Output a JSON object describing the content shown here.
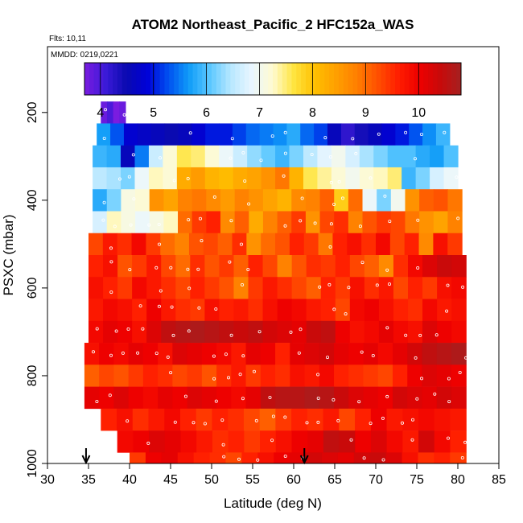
{
  "chart_data": {
    "type": "heatmap",
    "title": "ATOM2 Northeast_Pacific_2 HFC152a_WAS",
    "flights_note": "Flts: 10,11",
    "dates_note": "MMDD: 0219,0221",
    "xlabel": "Latitude (deg N)",
    "ylabel": "PSXC (mbar)",
    "xlim": [
      30,
      85
    ],
    "ylim": [
      1000,
      50
    ],
    "x_ticks": [
      "30",
      "35",
      "40",
      "45",
      "50",
      "55",
      "60",
      "65",
      "70",
      "75",
      "80",
      "85"
    ],
    "y_ticks": [
      "200",
      "400",
      "600",
      "800",
      "1000"
    ],
    "colorbar": {
      "min": 3.7,
      "max": 10.8,
      "ticks": [
        "4",
        "5",
        "6",
        "7",
        "8",
        "9",
        "10"
      ],
      "colors": [
        "#7a1ce0",
        "#3c1ad8",
        "#0a0ab0",
        "#0000d8",
        "#0050f0",
        "#109cf8",
        "#5cc8ff",
        "#b8e8ff",
        "#eaf6ff",
        "#fffbd0",
        "#ffe440",
        "#ffc000",
        "#ffa000",
        "#ff8000",
        "#ff5000",
        "#ff1e00",
        "#ee0000",
        "#c80a0a",
        "#a52020"
      ]
    },
    "row_height_mbar": 50,
    "rows": [
      {
        "p": 200,
        "lat_start": 36.5,
        "lat_end": 39.5,
        "values": [
          3.8,
          4.0,
          3.7,
          3.8
        ]
      },
      {
        "p": 250,
        "lat_start": 36,
        "lat_end": 79,
        "values": [
          5.7,
          5.3,
          4.8,
          4.7,
          4.6,
          4.5,
          4.6,
          4.8,
          5.0,
          5.0,
          5.2,
          5.4,
          5.5,
          5.6,
          5.8,
          5.4,
          5.2,
          4.6,
          4.2,
          4.4,
          4.6,
          4.8,
          5.0,
          5.3,
          5.6,
          5.9
        ]
      },
      {
        "p": 300,
        "lat_start": 35.5,
        "lat_end": 80,
        "values": [
          5.9,
          5.8,
          4.6,
          5.5,
          6.6,
          7.2,
          7.6,
          7.5,
          7.2,
          6.9,
          6.6,
          6.3,
          6.1,
          5.9,
          6.2,
          6.5,
          6.8,
          7.0,
          6.7,
          6.4,
          6.2,
          6.0,
          6.0,
          5.8,
          5.7,
          6.0
        ]
      },
      {
        "p": 350,
        "lat_start": 35.5,
        "lat_end": 80,
        "values": [
          6.5,
          6.4,
          6.2,
          6.9,
          7.3,
          7.2,
          8.3,
          8.5,
          8.2,
          8.1,
          8.3,
          8.4,
          8.6,
          8.9,
          8.2,
          7.6,
          7.4,
          7.2,
          7.0,
          7.2,
          7.3,
          7.5,
          5.9,
          6.2,
          6.7,
          6.9
        ]
      },
      {
        "p": 400,
        "lat_start": 35.5,
        "lat_end": 80.5,
        "values": [
          5.8,
          6.2,
          7.1,
          7.2,
          8.6,
          8.4,
          8.8,
          8.9,
          8.7,
          8.5,
          8.8,
          8.6,
          8.4,
          8.2,
          8.7,
          8.8,
          9.1,
          7.9,
          9.0,
          6.9,
          6.2,
          7.0,
          8.6,
          9.1,
          9.2,
          8.9
        ]
      },
      {
        "p": 450,
        "lat_start": 35.5,
        "lat_end": 80.5,
        "values": [
          6.7,
          7.3,
          7.1,
          6.9,
          7.1,
          7.3,
          9.0,
          9.4,
          9.6,
          8.7,
          9.1,
          8.3,
          8.8,
          9.1,
          9.4,
          8.6,
          9.3,
          9.5,
          8.8,
          9.2,
          9.4,
          9.3,
          8.9,
          8.6,
          8.4,
          8.8
        ]
      },
      {
        "p": 500,
        "lat_start": 35,
        "lat_end": 80.5,
        "values": [
          9.3,
          9.7,
          9.5,
          9.9,
          9.4,
          9.0,
          8.8,
          9.2,
          9.3,
          9.1,
          9.5,
          8.6,
          9.0,
          9.2,
          9.6,
          9.4,
          8.9,
          9.6,
          9.8,
          9.5,
          9.9,
          9.3,
          9.6,
          8.7,
          9.8,
          9.4
        ]
      },
      {
        "p": 550,
        "lat_start": 35,
        "lat_end": 81,
        "values": [
          9.6,
          9.8,
          9.2,
          9.4,
          9.7,
          9.3,
          9.0,
          9.5,
          9.2,
          9.4,
          9.1,
          9.6,
          9.3,
          8.8,
          9.2,
          9.5,
          9.4,
          9.6,
          9.3,
          9.1,
          8.7,
          9.5,
          9.9,
          10.2,
          10.4,
          10.3
        ]
      },
      {
        "p": 600,
        "lat_start": 35,
        "lat_end": 81,
        "values": [
          9.8,
          9.6,
          9.4,
          9.9,
          9.7,
          9.5,
          9.3,
          9.6,
          9.4,
          9.2,
          8.8,
          9.4,
          9.7,
          9.5,
          9.3,
          9.1,
          9.6,
          9.4,
          9.8,
          9.5,
          9.7,
          9.3,
          9.6,
          9.4,
          9.8,
          9.9
        ]
      },
      {
        "p": 650,
        "lat_start": 35,
        "lat_end": 81,
        "values": [
          9.7,
          9.9,
          9.8,
          9.6,
          10.0,
          9.7,
          9.5,
          9.4,
          9.8,
          9.6,
          9.7,
          9.5,
          9.8,
          10.0,
          9.9,
          9.7,
          9.6,
          9.3,
          9.9,
          10.0,
          9.8,
          9.6,
          9.5,
          9.9,
          9.7,
          9.8
        ]
      },
      {
        "p": 700,
        "lat_start": 35,
        "lat_end": 81,
        "values": [
          9.9,
          10.1,
          10.0,
          9.8,
          10.2,
          10.5,
          10.6,
          10.7,
          10.6,
          10.5,
          10.4,
          10.5,
          10.3,
          10.2,
          10.1,
          10.4,
          10.5,
          10.0,
          9.8,
          9.9,
          10.1,
          9.9,
          9.8,
          10.2,
          10.0,
          9.9
        ]
      },
      {
        "p": 750,
        "lat_start": 34.5,
        "lat_end": 81,
        "values": [
          9.8,
          10.0,
          9.9,
          10.1,
          10.0,
          9.8,
          10.2,
          10.1,
          10.0,
          9.9,
          9.7,
          10.1,
          10.0,
          9.6,
          10.1,
          10.2,
          10.3,
          10.1,
          10.0,
          10.1,
          9.9,
          10.1,
          10.3,
          10.5,
          10.6,
          10.7
        ]
      },
      {
        "p": 800,
        "lat_start": 34.5,
        "lat_end": 81,
        "values": [
          9.1,
          9.3,
          9.2,
          9.4,
          9.6,
          9.5,
          9.3,
          9.4,
          9.2,
          9.5,
          9.7,
          9.4,
          9.6,
          9.5,
          9.8,
          9.7,
          9.9,
          9.6,
          9.5,
          9.4,
          9.3,
          9.6,
          10.0,
          10.2,
          10.1,
          10.0
        ]
      },
      {
        "p": 850,
        "lat_start": 34.5,
        "lat_end": 81,
        "values": [
          10.1,
          10.0,
          10.2,
          10.0,
          9.9,
          10.1,
          10.0,
          10.2,
          10.1,
          10.0,
          9.9,
          10.1,
          10.5,
          10.6,
          10.6,
          10.7,
          10.6,
          10.4,
          10.2,
          10.1,
          10.0,
          10.3,
          10.2,
          10.1,
          10.3,
          10.2
        ]
      },
      {
        "p": 900,
        "lat_start": 36.5,
        "lat_end": 81,
        "values": [
          9.6,
          9.8,
          9.5,
          9.7,
          9.9,
          9.6,
          9.4,
          9.6,
          9.5,
          9.3,
          9.1,
          9.4,
          9.6,
          9.5,
          9.7,
          9.3,
          9.6,
          10.0,
          9.7,
          9.8,
          9.9,
          9.8,
          9.7
        ]
      },
      {
        "p": 950,
        "lat_start": 38.5,
        "lat_end": 81,
        "values": [
          9.9,
          10.0,
          10.2,
          10.1,
          9.9,
          9.7,
          9.5,
          9.6,
          9.4,
          9.6,
          9.8,
          10.0,
          10.1,
          10.5,
          10.4,
          10.0,
          10.2,
          9.9,
          9.7,
          10.3,
          9.9,
          9.6
        ]
      },
      {
        "p": 1000,
        "lat_start": 40,
        "lat_end": 81,
        "values": [
          9.4,
          10.0,
          10.1,
          9.8,
          9.6,
          9.5,
          9.3,
          9.6,
          9.8,
          10.0,
          10.1,
          10.3,
          10.2,
          10.1,
          10.3,
          10.4,
          10.2,
          9.8,
          9.5,
          9.6,
          9.4
        ]
      }
    ],
    "arrows_at_lat": [
      34.7,
      61.3
    ]
  }
}
